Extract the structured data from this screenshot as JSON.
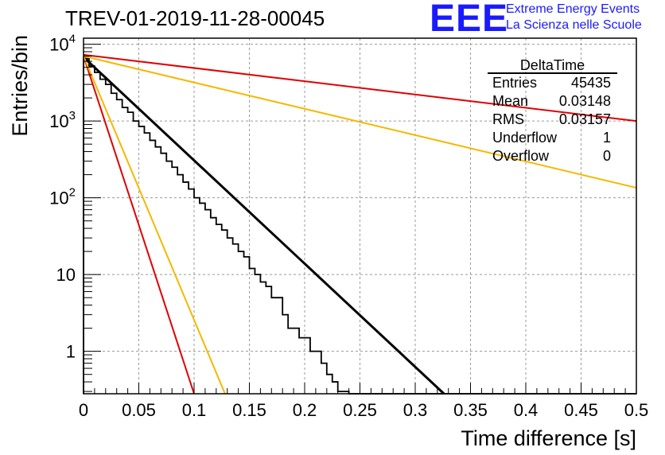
{
  "header": {
    "title": "TREV-01-2019-11-28-00045",
    "logo_mark": "EEE",
    "logo_line1": "Extreme Energy Events",
    "logo_line2": "La Scienza nelle Scuole"
  },
  "stats": {
    "name": "DeltaTime",
    "rows": [
      {
        "label": "Entries",
        "value": "45435"
      },
      {
        "label": "Mean",
        "value": "0.03148"
      },
      {
        "label": "RMS",
        "value": "0.03157"
      },
      {
        "label": "Underflow",
        "value": "1"
      },
      {
        "label": "Overflow",
        "value": "0"
      }
    ]
  },
  "chart_data": {
    "type": "line",
    "xlabel": "Time difference [s]",
    "ylabel": "Entries/bin",
    "xlim": [
      0,
      0.5
    ],
    "ylim": [
      0.28,
      12000
    ],
    "y_scale": "log",
    "grid": true,
    "x_ticks": [
      "0",
      "0.05",
      "0.1",
      "0.15",
      "0.2",
      "0.25",
      "0.3",
      "0.35",
      "0.4",
      "0.45",
      "0.5"
    ],
    "y_ticks": [
      {
        "value": 1,
        "base": "1",
        "exp": ""
      },
      {
        "value": 10,
        "base": "10",
        "exp": ""
      },
      {
        "value": 100,
        "base": "10",
        "exp": "2"
      },
      {
        "value": 1000,
        "base": "10",
        "exp": "3"
      },
      {
        "value": 10000,
        "base": "10",
        "exp": "4"
      }
    ],
    "histogram": {
      "name": "DeltaTime",
      "color": "#000000",
      "bin_width": 0.005,
      "counts": [
        6500,
        5200,
        4300,
        3500,
        3000,
        2300,
        1900,
        1500,
        1300,
        1000,
        850,
        700,
        560,
        460,
        380,
        300,
        250,
        200,
        160,
        130,
        100,
        85,
        70,
        55,
        45,
        38,
        30,
        25,
        20,
        17,
        12,
        10,
        8,
        7,
        5,
        5,
        3,
        2,
        2,
        1.5,
        1.5,
        1,
        1,
        0.7,
        0.5,
        0.4,
        0.3,
        0.3,
        0.2,
        0.2,
        0.1,
        0.1,
        0.1,
        0.1,
        0.1,
        0.1,
        0.1,
        0.1,
        0.1,
        0.1,
        0.1,
        0.1,
        0.1,
        0.1,
        0.1,
        0.1,
        0.1,
        0.1,
        0.1,
        0.1,
        0.1,
        0.1,
        0.1,
        0.1,
        0.1,
        0.1,
        0.1,
        0.1,
        0.1,
        0.1,
        0.1,
        0.1,
        0.1,
        0.1,
        0.1,
        0.1,
        0.1,
        0.1,
        0.1,
        0.1,
        0.1,
        0.1,
        0.1,
        0.1,
        0.1,
        0.1,
        0.1,
        0.1,
        0.1,
        0.1
      ]
    },
    "series": [
      {
        "color": "#000000",
        "x": [
          0,
          0.326
        ],
        "y": [
          6800,
          0.28
        ],
        "width": 3
      },
      {
        "color": "#e00000",
        "x": [
          0,
          0.1
        ],
        "y": [
          7000,
          0.28
        ],
        "width": 2
      },
      {
        "color": "#f5b800",
        "x": [
          0,
          0.128
        ],
        "y": [
          7000,
          0.28
        ],
        "width": 2
      },
      {
        "color": "#e00000",
        "x": [
          0,
          0.5
        ],
        "y": [
          7300,
          1000
        ],
        "width": 2
      },
      {
        "color": "#f5b800",
        "x": [
          0,
          0.5
        ],
        "y": [
          7000,
          135
        ],
        "width": 2
      }
    ]
  }
}
